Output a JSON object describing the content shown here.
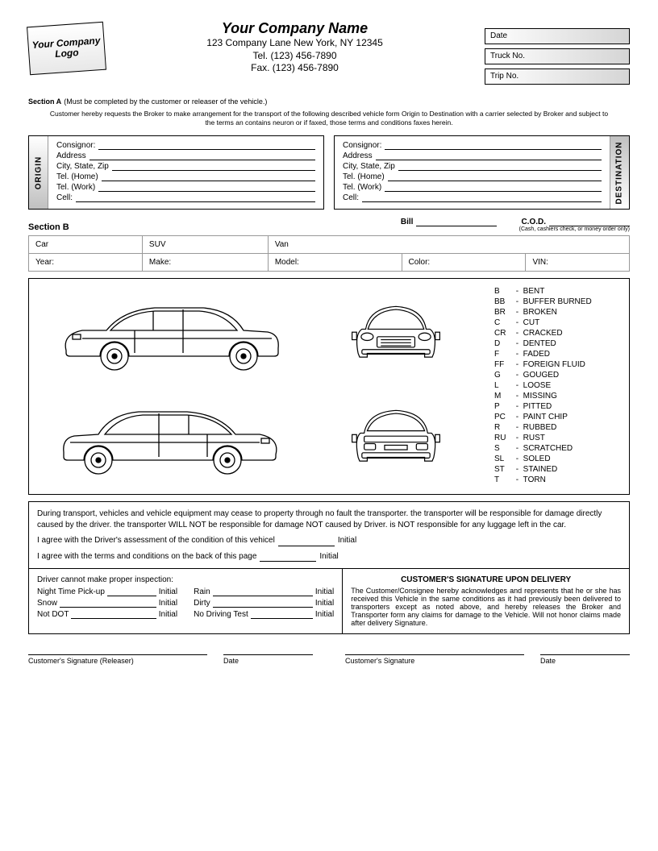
{
  "logo_text": "Your Company Logo",
  "company": {
    "name": "Your Company Name",
    "address": "123 Company Lane New York, NY 12345",
    "tel": "Tel. (123) 456-7890",
    "fax": "Fax. (123) 456-7890"
  },
  "right_fields": [
    "Date",
    "Truck No.",
    "Trip No."
  ],
  "section_a": {
    "title": "Section A",
    "note": "(Must be completed by the customer or releaser of the vehicle.)",
    "disclaimer": "Customer hereby requests the Broker to make arrangement for the transport of the following described vehicle form Origin to Destination with a carrier selected by Broker and subject to the terms an contains neuron or if faxed, those terms and conditions faxes herein."
  },
  "origin": {
    "label": "ORIGIN",
    "fields": [
      "Consignor:",
      "Address",
      "City, State, Zip",
      "Tel. (Home)",
      "Tel. (Work)",
      "Cell:"
    ]
  },
  "destination": {
    "label": "DESTINATION",
    "fields": [
      "Consignor:",
      "Address",
      "City, State, Zip",
      "Tel. (Home)",
      "Tel. (Work)",
      "Cell:"
    ]
  },
  "section_b": {
    "title": "Section B",
    "bill_label": "Bill",
    "cod_label": "C.O.D.",
    "cod_note": "(Cash, cashiers check, or money order only)"
  },
  "vehicle_types": [
    "Car",
    "SUV",
    "Van"
  ],
  "vehicle_fields": [
    "Year:",
    "Make:",
    "Model:",
    "Color:",
    "VIN:"
  ],
  "damage_codes": [
    [
      "B",
      "BENT"
    ],
    [
      "BB",
      "BUFFER BURNED"
    ],
    [
      "BR",
      "BROKEN"
    ],
    [
      "C",
      "CUT"
    ],
    [
      "CR",
      "CRACKED"
    ],
    [
      "D",
      "DENTED"
    ],
    [
      "F",
      "FADED"
    ],
    [
      "FF",
      "FOREIGN FLUID"
    ],
    [
      "G",
      "GOUGED"
    ],
    [
      "L",
      "LOOSE"
    ],
    [
      "M",
      "MISSING"
    ],
    [
      "P",
      "PITTED"
    ],
    [
      "PC",
      "PAINT CHIP"
    ],
    [
      "R",
      "RUBBED"
    ],
    [
      "RU",
      "RUST"
    ],
    [
      "S",
      "SCRATCHED"
    ],
    [
      "SL",
      "SOLED"
    ],
    [
      "ST",
      "STAINED"
    ],
    [
      "T",
      "TORN"
    ]
  ],
  "transport_note": "During transport, vehicles and vehicle equipment may cease to property through no fault the transporter. the transporter will be responsible for damage directly caused by the driver. the transporter WILL NOT be responsible for damage NOT caused by Driver. is NOT responsible for any luggage left in the car.",
  "agree1": "I agree with the Driver's assessment of the condition of this vehicel",
  "agree2": "I agree with the terms and conditions on the back of this page",
  "initial_label": "Initial",
  "inspection": {
    "head": "Driver cannot make proper inspection:",
    "items": [
      "Night Time Pick-up",
      "Rain",
      "Snow",
      "Dirty",
      "Not DOT",
      "No Driving Test"
    ]
  },
  "customer_sig": {
    "title": "CUSTOMER'S SIGNATURE UPON DELIVERY",
    "text": "The Customer/Consignee hereby acknowledges and represents that he or she has received this Vehicle in the same conditions as it had previously been delivered to transporters except as noted above, and hereby releases the Broker and Transporter form any claims for damage to the Vehicle. Will not honor claims made after delivery Signature."
  },
  "sig_labels": {
    "releaser": "Customer's Signature (Releaser)",
    "date": "Date",
    "customer": "Customer's Signature"
  }
}
